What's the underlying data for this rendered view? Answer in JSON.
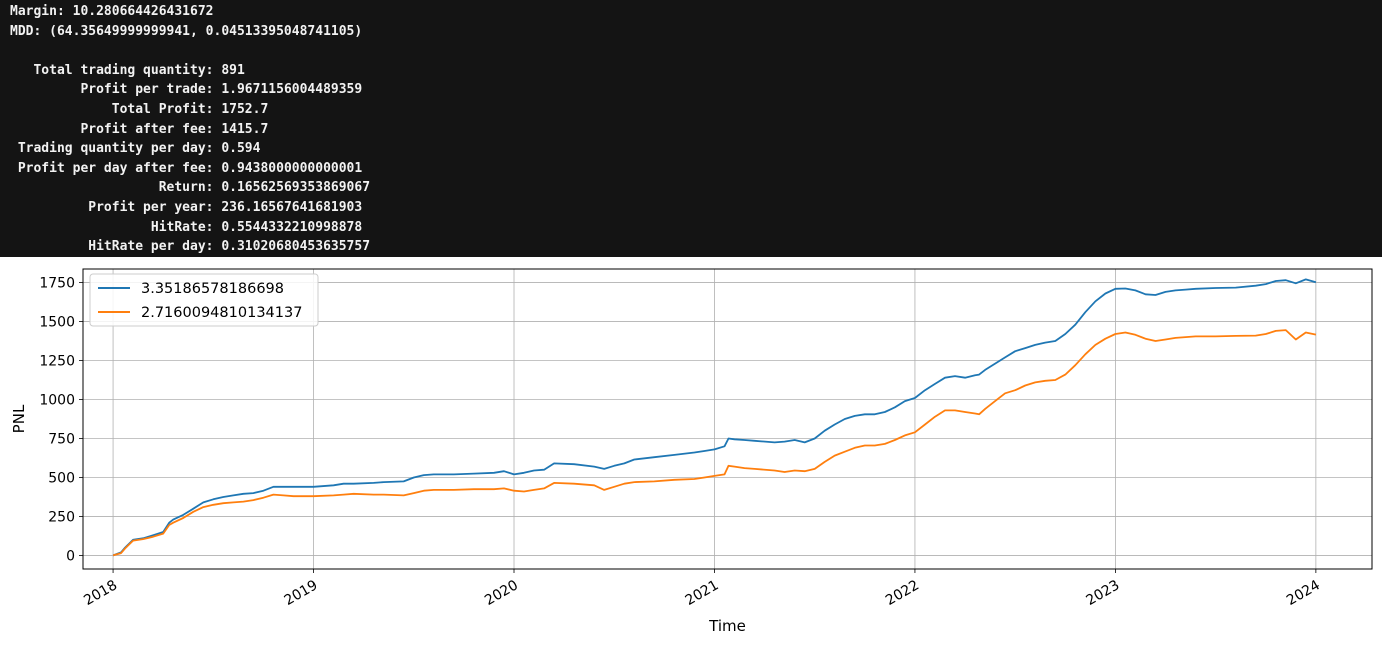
{
  "console": {
    "margin_line": "Margin: 10.280664426431672",
    "mdd_line": "MDD: (64.35649999999941, 0.04513395048741105)",
    "stats": [
      {
        "label": "Total trading quantity",
        "value": "891"
      },
      {
        "label": "Profit per trade",
        "value": "1.9671156004489359"
      },
      {
        "label": "Total Profit",
        "value": "1752.7"
      },
      {
        "label": "Profit after fee",
        "value": "1415.7"
      },
      {
        "label": "Trading quantity per day",
        "value": "0.594"
      },
      {
        "label": "Profit per day after fee",
        "value": "0.9438000000000001"
      },
      {
        "label": "Return",
        "value": "0.16562569353869067"
      },
      {
        "label": "Profit per year",
        "value": "236.16567641681903"
      },
      {
        "label": "HitRate",
        "value": "0.5544332210998878"
      },
      {
        "label": "HitRate per day",
        "value": "0.31020680453635757"
      }
    ]
  },
  "colors": {
    "series_blue": "#1f77b4",
    "series_orange": "#ff7f0e",
    "grid": "#b0b0b0"
  },
  "chart_data": {
    "type": "line",
    "xlabel": "Time",
    "ylabel": "PNL",
    "xlim": [
      2017.85,
      2024.28
    ],
    "ylim": [
      -87,
      1837
    ],
    "grid": true,
    "legend_placement": "top-left",
    "x_ticks": [
      2018,
      2019,
      2020,
      2021,
      2022,
      2023,
      2024
    ],
    "x_tick_labels": [
      "2018",
      "2019",
      "2020",
      "2021",
      "2022",
      "2023",
      "2024"
    ],
    "y_ticks": [
      0,
      250,
      500,
      750,
      1000,
      1250,
      1500,
      1750
    ],
    "y_tick_labels": [
      "0",
      "250",
      "500",
      "750",
      "1000",
      "1250",
      "1500",
      "1750"
    ],
    "series": [
      {
        "name": "3.35186578186698",
        "color": "#1f77b4",
        "x": [
          2018.0,
          2018.04,
          2018.06,
          2018.1,
          2018.15,
          2018.2,
          2018.25,
          2018.28,
          2018.3,
          2018.35,
          2018.4,
          2018.45,
          2018.5,
          2018.55,
          2018.6,
          2018.65,
          2018.7,
          2018.75,
          2018.8,
          2018.85,
          2018.9,
          2019.0,
          2019.1,
          2019.15,
          2019.2,
          2019.3,
          2019.35,
          2019.45,
          2019.5,
          2019.55,
          2019.6,
          2019.7,
          2019.8,
          2019.9,
          2019.95,
          2020.0,
          2020.05,
          2020.1,
          2020.15,
          2020.2,
          2020.3,
          2020.4,
          2020.45,
          2020.5,
          2020.55,
          2020.6,
          2020.7,
          2020.8,
          2020.9,
          2020.95,
          2021.0,
          2021.05,
          2021.07,
          2021.1,
          2021.15,
          2021.2,
          2021.3,
          2021.35,
          2021.4,
          2021.45,
          2021.5,
          2021.55,
          2021.6,
          2021.65,
          2021.7,
          2021.75,
          2021.8,
          2021.85,
          2021.9,
          2021.95,
          2022.0,
          2022.05,
          2022.1,
          2022.15,
          2022.2,
          2022.25,
          2022.3,
          2022.32,
          2022.35,
          2022.4,
          2022.45,
          2022.5,
          2022.55,
          2022.6,
          2022.65,
          2022.7,
          2022.75,
          2022.8,
          2022.85,
          2022.9,
          2022.95,
          2023.0,
          2023.05,
          2023.1,
          2023.15,
          2023.2,
          2023.25,
          2023.3,
          2023.35,
          2023.4,
          2023.5,
          2023.6,
          2023.7,
          2023.75,
          2023.8,
          2023.85,
          2023.9,
          2023.95,
          2024.0
        ],
        "y": [
          0,
          20,
          50,
          100,
          110,
          130,
          150,
          210,
          230,
          260,
          300,
          340,
          360,
          375,
          385,
          395,
          400,
          415,
          440,
          440,
          440,
          440,
          450,
          460,
          460,
          465,
          470,
          475,
          500,
          515,
          520,
          520,
          525,
          530,
          540,
          520,
          530,
          545,
          550,
          590,
          585,
          570,
          555,
          575,
          590,
          615,
          630,
          645,
          660,
          670,
          680,
          700,
          750,
          745,
          740,
          735,
          725,
          730,
          740,
          725,
          750,
          800,
          840,
          875,
          895,
          905,
          905,
          920,
          950,
          990,
          1010,
          1060,
          1100,
          1140,
          1150,
          1140,
          1155,
          1160,
          1190,
          1230,
          1270,
          1310,
          1330,
          1350,
          1365,
          1375,
          1420,
          1480,
          1560,
          1630,
          1680,
          1710,
          1712,
          1700,
          1675,
          1670,
          1690,
          1700,
          1705,
          1710,
          1715,
          1718,
          1730,
          1740,
          1760,
          1765,
          1745,
          1770,
          1752
        ]
      },
      {
        "name": "2.7160094810134137",
        "color": "#ff7f0e",
        "x": [
          2018.0,
          2018.04,
          2018.06,
          2018.1,
          2018.15,
          2018.2,
          2018.25,
          2018.28,
          2018.3,
          2018.35,
          2018.4,
          2018.45,
          2018.5,
          2018.55,
          2018.6,
          2018.65,
          2018.7,
          2018.75,
          2018.8,
          2018.85,
          2018.9,
          2019.0,
          2019.1,
          2019.15,
          2019.2,
          2019.3,
          2019.35,
          2019.45,
          2019.5,
          2019.55,
          2019.6,
          2019.7,
          2019.8,
          2019.9,
          2019.95,
          2020.0,
          2020.05,
          2020.1,
          2020.15,
          2020.2,
          2020.3,
          2020.4,
          2020.45,
          2020.5,
          2020.55,
          2020.6,
          2020.7,
          2020.8,
          2020.9,
          2020.95,
          2021.0,
          2021.05,
          2021.07,
          2021.1,
          2021.15,
          2021.2,
          2021.3,
          2021.35,
          2021.4,
          2021.45,
          2021.5,
          2021.55,
          2021.6,
          2021.65,
          2021.7,
          2021.75,
          2021.8,
          2021.85,
          2021.9,
          2021.95,
          2022.0,
          2022.05,
          2022.1,
          2022.15,
          2022.2,
          2022.25,
          2022.3,
          2022.32,
          2022.35,
          2022.4,
          2022.45,
          2022.5,
          2022.55,
          2022.6,
          2022.65,
          2022.7,
          2022.75,
          2022.8,
          2022.85,
          2022.9,
          2022.95,
          2023.0,
          2023.05,
          2023.1,
          2023.15,
          2023.2,
          2023.25,
          2023.3,
          2023.35,
          2023.4,
          2023.5,
          2023.6,
          2023.7,
          2023.75,
          2023.8,
          2023.85,
          2023.9,
          2023.95,
          2024.0
        ],
        "y": [
          0,
          15,
          45,
          95,
          105,
          120,
          140,
          195,
          210,
          240,
          280,
          310,
          325,
          335,
          340,
          345,
          355,
          370,
          390,
          385,
          380,
          380,
          385,
          390,
          395,
          390,
          390,
          385,
          400,
          415,
          420,
          420,
          425,
          425,
          430,
          415,
          410,
          420,
          430,
          465,
          460,
          450,
          420,
          440,
          460,
          470,
          475,
          485,
          490,
          500,
          510,
          520,
          575,
          570,
          560,
          555,
          545,
          535,
          545,
          540,
          555,
          600,
          640,
          665,
          690,
          705,
          705,
          715,
          740,
          770,
          790,
          840,
          890,
          930,
          930,
          920,
          910,
          905,
          940,
          990,
          1040,
          1060,
          1090,
          1110,
          1120,
          1125,
          1160,
          1220,
          1290,
          1350,
          1390,
          1420,
          1430,
          1415,
          1390,
          1375,
          1385,
          1395,
          1400,
          1405,
          1405,
          1408,
          1410,
          1420,
          1440,
          1445,
          1385,
          1430,
          1416
        ]
      }
    ]
  }
}
